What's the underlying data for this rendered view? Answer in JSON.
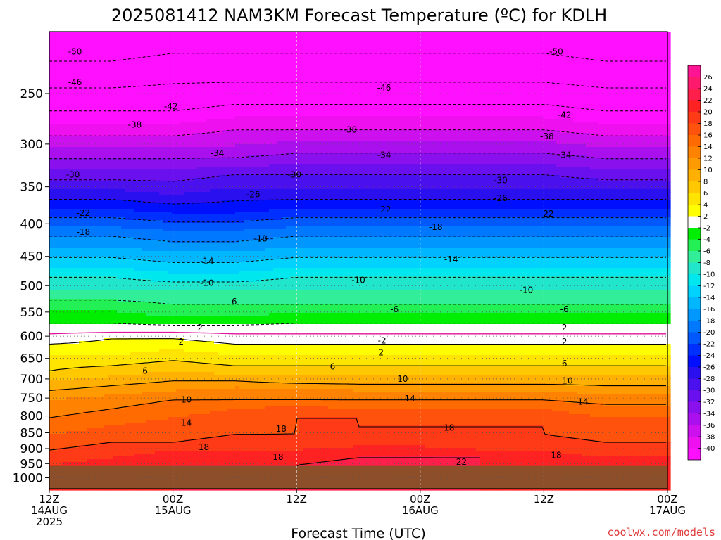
{
  "title": "2025081412 NAM3KM Forecast Temperature (ºC) for KDLH",
  "credit": "coolwx.com/models",
  "colors": {
    "ground": "#8c4f2a",
    "freezing_line": "#e0119a",
    "credit": "#e03c3c",
    "grid": "#bdbdbd"
  },
  "chart_data": {
    "type": "heatmap",
    "title": "2025081412 NAM3KM Forecast Temperature (ºC) for KDLH",
    "xlabel": "Forecast Time (UTC)",
    "ylabel": "",
    "x_axis": {
      "range_hours": [
        0,
        60
      ],
      "ticks": [
        {
          "hour": 0,
          "lines": [
            "12Z",
            "14AUG",
            "2025"
          ]
        },
        {
          "hour": 12,
          "lines": [
            "00Z",
            "15AUG"
          ]
        },
        {
          "hour": 24,
          "lines": [
            "12Z"
          ]
        },
        {
          "hour": 36,
          "lines": [
            "00Z",
            "16AUG"
          ]
        },
        {
          "hour": 48,
          "lines": [
            "12Z"
          ]
        },
        {
          "hour": 60,
          "lines": [
            "00Z",
            "17AUG"
          ]
        }
      ]
    },
    "y_axis": {
      "scale": "log-pressure",
      "inverted": true,
      "range_hpa": [
        1040,
        200
      ],
      "ticks": [
        250,
        300,
        350,
        400,
        450,
        500,
        550,
        600,
        650,
        700,
        750,
        800,
        850,
        900,
        950,
        1000
      ]
    },
    "grid": true,
    "ground_level_hpa": 958,
    "colorbar": {
      "levels": [
        26,
        24,
        22,
        20,
        18,
        16,
        14,
        12,
        10,
        8,
        6,
        4,
        2,
        -2,
        -4,
        -6,
        -8,
        -10,
        -12,
        -14,
        -16,
        -18,
        -20,
        -22,
        -24,
        -26,
        -28,
        -30,
        -32,
        -34,
        -36,
        -38,
        -40
      ],
      "colors": [
        "#ff1493",
        "#ff1a6e",
        "#ff1f4a",
        "#ff2222",
        "#ff3a16",
        "#ff520c",
        "#ff6b00",
        "#ff8300",
        "#ff9a00",
        "#ffb000",
        "#ffc800",
        "#ffe400",
        "#ffff00",
        "#ffffff",
        "#00ee00",
        "#22f055",
        "#33ee99",
        "#22e6cc",
        "#00e8ee",
        "#00d2ff",
        "#00b6ff",
        "#0098ff",
        "#0078ff",
        "#0058ff",
        "#0030ff",
        "#0010ff",
        "#2a10ee",
        "#4a10ee",
        "#6a10ee",
        "#8a10ee",
        "#aa10ee",
        "#cc10ee",
        "#ee10ee",
        "#ff10ff"
      ]
    },
    "levels_hpa": [
      210,
      235,
      260,
      285,
      310,
      335,
      360,
      385,
      410,
      435,
      460,
      485,
      510,
      535,
      560,
      585,
      605,
      630,
      655,
      680,
      705,
      730,
      755,
      780,
      805,
      830,
      855,
      880,
      905,
      930,
      955
    ],
    "column_hours": [
      0,
      6,
      12,
      18,
      24,
      30,
      36,
      42,
      48,
      54,
      60
    ],
    "temperature_c": [
      [
        -52,
        -52,
        -51,
        -51,
        -51,
        -51,
        -51,
        -51,
        -51,
        -52,
        -52
      ],
      [
        -48,
        -48,
        -47,
        -47,
        -47,
        -47,
        -47,
        -47,
        -47,
        -48,
        -48
      ],
      [
        -43,
        -43,
        -43,
        -42,
        -42,
        -42,
        -42,
        -42,
        -42,
        -43,
        -43
      ],
      [
        -39,
        -39,
        -39,
        -38,
        -38,
        -38,
        -38,
        -38,
        -38,
        -39,
        -39
      ],
      [
        -35,
        -35,
        -35,
        -35,
        -34,
        -34,
        -34,
        -34,
        -34,
        -35,
        -35
      ],
      [
        -31,
        -31,
        -31,
        -30,
        -30,
        -30,
        -30,
        -30,
        -30,
        -31,
        -31
      ],
      [
        -27,
        -27,
        -28,
        -27,
        -27,
        -27,
        -27,
        -27,
        -27,
        -27,
        -27
      ],
      [
        -23,
        -23,
        -24,
        -24,
        -23,
        -23,
        -23,
        -23,
        -23,
        -23,
        -23
      ],
      [
        -19,
        -19,
        -20,
        -20,
        -19,
        -19,
        -19,
        -19,
        -19,
        -19,
        -19
      ],
      [
        -16,
        -16,
        -17,
        -17,
        -16,
        -16,
        -16,
        -16,
        -16,
        -16,
        -16
      ],
      [
        -13,
        -13,
        -14,
        -14,
        -13,
        -13,
        -13,
        -13,
        -13,
        -13,
        -13
      ],
      [
        -10,
        -10,
        -11,
        -11,
        -10,
        -10,
        -10,
        -10,
        -10,
        -10,
        -10
      ],
      [
        -8,
        -8,
        -8,
        -8,
        -8,
        -8,
        -8,
        -8,
        -8,
        -8,
        -8
      ],
      [
        -5,
        -5,
        -6,
        -6,
        -6,
        -6,
        -6,
        -6,
        -6,
        -6,
        -6
      ],
      [
        -3,
        -3,
        -4,
        -4,
        -3,
        -3,
        -3,
        -3,
        -3,
        -3,
        -3
      ],
      [
        -1,
        -1,
        -1,
        -1,
        -1,
        -1,
        -1,
        -1,
        -1,
        -1,
        -1
      ],
      [
        1,
        2,
        2,
        1,
        1,
        1,
        1,
        1,
        1,
        1,
        1
      ],
      [
        3,
        3,
        4,
        3,
        3,
        3,
        3,
        3,
        3,
        3,
        3
      ],
      [
        5,
        5,
        6,
        5,
        5,
        5,
        5,
        5,
        5,
        5,
        5
      ],
      [
        6,
        7,
        8,
        7,
        7,
        7,
        7,
        7,
        7,
        7,
        7
      ],
      [
        8,
        9,
        10,
        10,
        9,
        9,
        9,
        9,
        9,
        9,
        9
      ],
      [
        10,
        11,
        12,
        13,
        13,
        12,
        12,
        12,
        12,
        11,
        11
      ],
      [
        12,
        13,
        14,
        14,
        14,
        14,
        14,
        14,
        14,
        13,
        13
      ],
      [
        13,
        14,
        15,
        16,
        17,
        16,
        16,
        16,
        16,
        15,
        15
      ],
      [
        14,
        15,
        16,
        17,
        18,
        18,
        17,
        17,
        17,
        16,
        16
      ],
      [
        15,
        16,
        17,
        17,
        18,
        18,
        18,
        18,
        18,
        17,
        17
      ],
      [
        16,
        17,
        17,
        18,
        18,
        18,
        18,
        18,
        18,
        17,
        17
      ],
      [
        17,
        18,
        18,
        19,
        19,
        19,
        19,
        19,
        19,
        18,
        18
      ],
      [
        18,
        19,
        20,
        20,
        20,
        21,
        21,
        20,
        20,
        19,
        19
      ],
      [
        19,
        20,
        21,
        21,
        21,
        22,
        22,
        22,
        21,
        20,
        20
      ],
      [
        20,
        21,
        22,
        22,
        22,
        23,
        23,
        22,
        21,
        21,
        21
      ]
    ],
    "contours": {
      "dashed_levels": [
        -50,
        -46,
        -42,
        -38,
        -34,
        -30,
        -26,
        -22,
        -18,
        -14,
        -10,
        -6,
        -2
      ],
      "solid_levels": [
        2,
        6,
        10,
        14,
        18,
        22
      ],
      "freezing_level": 0
    },
    "contour_labels": [
      {
        "text": "-50",
        "hour": 2.5,
        "hpa": 215
      },
      {
        "text": "-50",
        "hour": 49.2,
        "hpa": 215
      },
      {
        "text": "-46",
        "hour": 2.5,
        "hpa": 240
      },
      {
        "text": "-46",
        "hour": 32.5,
        "hpa": 245
      },
      {
        "text": "-42",
        "hour": 11.8,
        "hpa": 262
      },
      {
        "text": "-42",
        "hour": 50.0,
        "hpa": 270
      },
      {
        "text": "-38",
        "hour": 8.3,
        "hpa": 280
      },
      {
        "text": "-38",
        "hour": 29.2,
        "hpa": 285
      },
      {
        "text": "-38",
        "hour": 48.3,
        "hpa": 292
      },
      {
        "text": "-34",
        "hour": 16.3,
        "hpa": 310
      },
      {
        "text": "-34",
        "hour": 32.5,
        "hpa": 312
      },
      {
        "text": "-34",
        "hour": 50.0,
        "hpa": 312
      },
      {
        "text": "-30",
        "hour": 2.3,
        "hpa": 335
      },
      {
        "text": "-30",
        "hour": 23.8,
        "hpa": 335
      },
      {
        "text": "-30",
        "hour": 43.8,
        "hpa": 342
      },
      {
        "text": "-26",
        "hour": 19.8,
        "hpa": 360
      },
      {
        "text": "-26",
        "hour": 43.8,
        "hpa": 365
      },
      {
        "text": "-22",
        "hour": 3.3,
        "hpa": 385
      },
      {
        "text": "-22",
        "hour": 32.5,
        "hpa": 380
      },
      {
        "text": "-22",
        "hour": 48.3,
        "hpa": 386
      },
      {
        "text": "-18",
        "hour": 3.3,
        "hpa": 412
      },
      {
        "text": "-18",
        "hour": 20.5,
        "hpa": 422
      },
      {
        "text": "-18",
        "hour": 37.5,
        "hpa": 405
      },
      {
        "text": "-14",
        "hour": 15.3,
        "hpa": 458
      },
      {
        "text": "-14",
        "hour": 39.0,
        "hpa": 455
      },
      {
        "text": "-10",
        "hour": 15.3,
        "hpa": 495
      },
      {
        "text": "-10",
        "hour": 30.0,
        "hpa": 490
      },
      {
        "text": "-10",
        "hour": 46.3,
        "hpa": 508
      },
      {
        "text": "-6",
        "hour": 17.8,
        "hpa": 530
      },
      {
        "text": "-6",
        "hour": 33.5,
        "hpa": 545
      },
      {
        "text": "-6",
        "hour": 50.0,
        "hpa": 545
      },
      {
        "text": "-2",
        "hour": 14.5,
        "hpa": 582
      },
      {
        "text": "-2",
        "hour": 32.3,
        "hpa": 610
      },
      {
        "text": "2",
        "hour": 50.0,
        "hpa": 582
      },
      {
        "text": "2",
        "hour": 12.8,
        "hpa": 612
      },
      {
        "text": "2",
        "hour": 32.2,
        "hpa": 637
      },
      {
        "text": "2",
        "hour": 50.0,
        "hpa": 612
      },
      {
        "text": "6",
        "hour": 9.3,
        "hpa": 680
      },
      {
        "text": "6",
        "hour": 27.5,
        "hpa": 670
      },
      {
        "text": "6",
        "hour": 50.0,
        "hpa": 662
      },
      {
        "text": "10",
        "hour": 13.3,
        "hpa": 755
      },
      {
        "text": "10",
        "hour": 34.3,
        "hpa": 700
      },
      {
        "text": "10",
        "hour": 50.3,
        "hpa": 705
      },
      {
        "text": "14",
        "hour": 13.3,
        "hpa": 820
      },
      {
        "text": "14",
        "hour": 35.0,
        "hpa": 752
      },
      {
        "text": "14",
        "hour": 51.8,
        "hpa": 760
      },
      {
        "text": "18",
        "hour": 15.0,
        "hpa": 895
      },
      {
        "text": "18",
        "hour": 22.5,
        "hpa": 838
      },
      {
        "text": "18",
        "hour": 22.2,
        "hpa": 928
      },
      {
        "text": "18",
        "hour": 38.8,
        "hpa": 835
      },
      {
        "text": "18",
        "hour": 49.2,
        "hpa": 922
      },
      {
        "text": "22",
        "hour": 40.0,
        "hpa": 945
      }
    ]
  }
}
